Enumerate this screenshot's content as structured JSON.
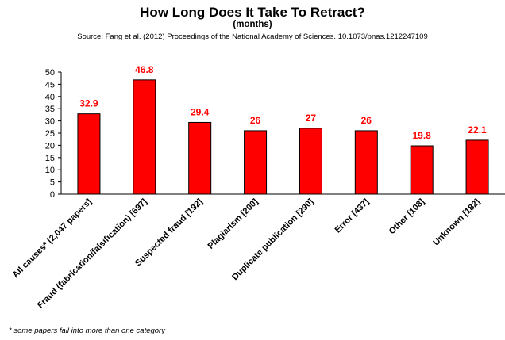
{
  "chart_data": {
    "type": "bar",
    "title": "How Long Does It Take To Retract?",
    "subtitle": "(months)",
    "source": "Source: Fang et al. (2012) Proceedings of the National Academy of Sciences. 10.1073/pnas.1212247109",
    "categories": [
      "All causes* [2,047 papers]",
      "Fraud (fabrication/falsification) [697]",
      "Suspected fraud  [192]",
      "Plagiarism  [200]",
      "Duplicate publication [290]",
      "Error [437]",
      "Other [108]",
      "Unknown  [182]"
    ],
    "values": [
      32.9,
      46.8,
      29.4,
      26,
      27,
      26,
      19.8,
      22.1
    ],
    "data_labels": [
      "32.9",
      "46.8",
      "29.4",
      "26",
      "27",
      "26",
      "19.8",
      "22.1"
    ],
    "ylim": [
      0,
      50
    ],
    "yticks": [
      0,
      5,
      10,
      15,
      20,
      25,
      30,
      35,
      40,
      45,
      50
    ],
    "grid": false,
    "legend": "none",
    "bar_color": "#ff0000",
    "label_color": "#ff0000"
  },
  "footnote": "* some papers fall into more than one category"
}
